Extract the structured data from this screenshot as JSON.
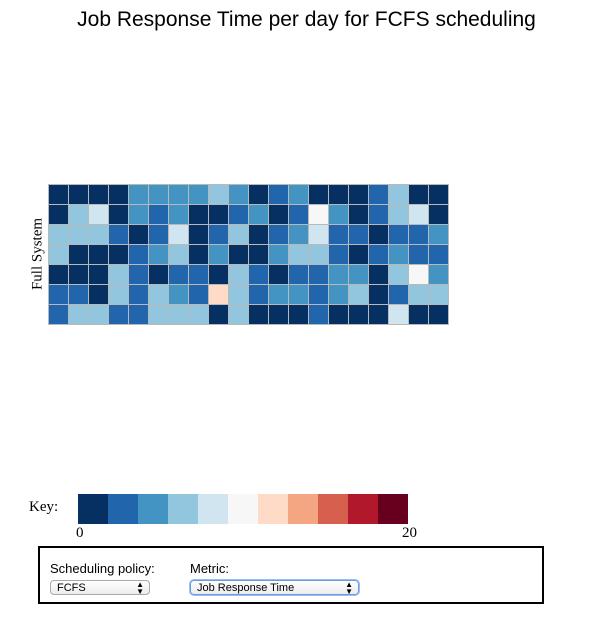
{
  "title": "Job Response Time per day for FCFS scheduling",
  "chart_data": {
    "type": "heatmap",
    "title": "Job Response Time per day for FCFS scheduling",
    "ylabel": "Full System",
    "rows": 7,
    "cols": 20,
    "value_range": [
      0,
      20
    ],
    "values": [
      [
        0,
        0,
        0,
        0,
        4,
        4,
        4,
        4,
        6,
        4,
        0,
        2,
        4,
        0,
        0,
        0,
        2,
        6,
        0,
        0
      ],
      [
        0,
        6,
        8,
        0,
        4,
        2,
        4,
        0,
        0,
        2,
        4,
        0,
        2,
        10,
        4,
        0,
        2,
        6,
        8,
        0
      ],
      [
        6,
        6,
        6,
        2,
        0,
        2,
        8,
        0,
        2,
        6,
        0,
        2,
        4,
        8,
        2,
        2,
        0,
        2,
        2,
        4
      ],
      [
        6,
        0,
        0,
        0,
        2,
        4,
        6,
        0,
        4,
        0,
        0,
        4,
        6,
        6,
        2,
        0,
        2,
        4,
        2,
        2
      ],
      [
        0,
        0,
        0,
        6,
        2,
        0,
        2,
        2,
        0,
        6,
        2,
        0,
        2,
        2,
        4,
        4,
        0,
        6,
        10,
        4
      ],
      [
        2,
        2,
        0,
        6,
        2,
        6,
        4,
        2,
        12,
        6,
        2,
        4,
        4,
        2,
        4,
        6,
        0,
        2,
        6,
        6
      ],
      [
        2,
        6,
        6,
        2,
        2,
        6,
        6,
        6,
        0,
        6,
        0,
        0,
        0,
        2,
        0,
        0,
        0,
        8,
        0,
        0
      ]
    ],
    "colors": [
      "#053061",
      "#2166ac",
      "#4393c3",
      "#92c5de",
      "#d1e5f0",
      "#f7f7f7",
      "#fddbc7",
      "#f4a582",
      "#d6604d",
      "#b2182b",
      "#67001f"
    ]
  },
  "key": {
    "label": "Key:",
    "min": "0",
    "max": "20"
  },
  "controls": {
    "policy_label": "Scheduling policy:",
    "policy_value": "FCFS",
    "metric_label": "Metric:",
    "metric_value": "Job Response Time"
  }
}
